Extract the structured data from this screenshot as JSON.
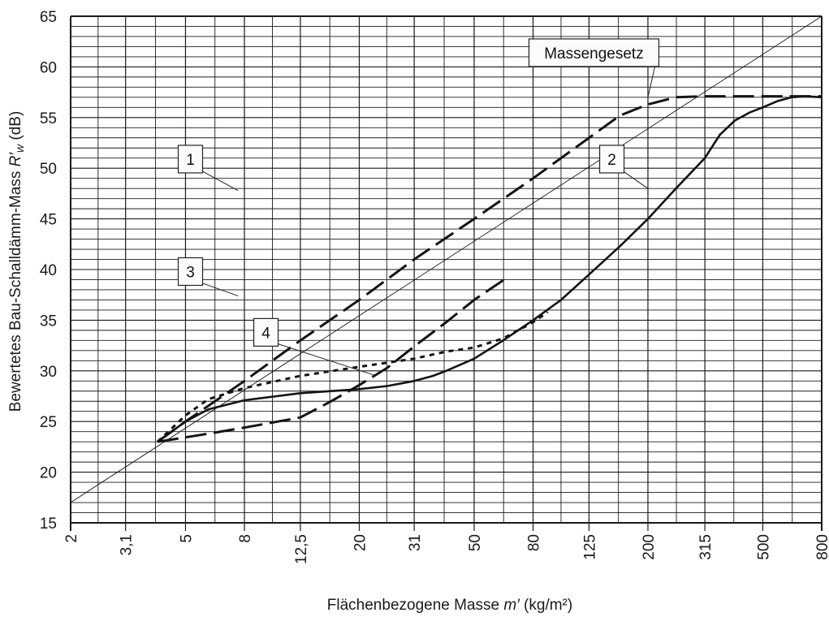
{
  "chart_data": {
    "type": "line",
    "xlabel": "Flächenbezogene Masse m′ (kg/m²)",
    "xlabel_main": "Flächenbezogene Masse ",
    "xlabel_var": "m′",
    "xlabel_unit": " (kg/m²)",
    "ylabel": "Bewertetes Bau-Schalldämm-Mass R′w (dB)",
    "ylabel_main": "Bewertetes Bau-Schalldämm-Mass ",
    "ylabel_var": "R′",
    "ylabel_sub": "w",
    "ylabel_unit": " (dB)",
    "x_scale": "log",
    "x_ticks": [
      2,
      3.1,
      5,
      8,
      12.5,
      20,
      31,
      50,
      80,
      125,
      200,
      315,
      500,
      800
    ],
    "x_tick_labels": [
      "2",
      "3,1",
      "5",
      "8",
      "12,5",
      "20",
      "31",
      "50",
      "80",
      "125",
      "200",
      "315",
      "500",
      "800"
    ],
    "xlim": [
      2,
      800
    ],
    "ylim": [
      15,
      65
    ],
    "y_ticks": [
      15,
      20,
      25,
      30,
      35,
      40,
      45,
      50,
      55,
      60,
      65
    ],
    "y_tick_labels": [
      "15",
      "20",
      "25",
      "30",
      "35",
      "40",
      "45",
      "50",
      "55",
      "60",
      "65"
    ],
    "y_minor_step": 1,
    "grid": true,
    "series": [
      {
        "name": "Massengesetz",
        "style": "thin",
        "points": [
          [
            2,
            17
          ],
          [
            800,
            65
          ]
        ]
      },
      {
        "name": "1",
        "style": "long-dash",
        "points": [
          [
            4,
            23
          ],
          [
            5,
            25
          ],
          [
            8,
            29
          ],
          [
            12.5,
            33
          ],
          [
            20,
            37
          ],
          [
            31,
            41
          ],
          [
            50,
            45
          ],
          [
            80,
            49
          ],
          [
            125,
            53
          ],
          [
            160,
            55.2
          ],
          [
            200,
            56.3
          ],
          [
            250,
            57
          ],
          [
            315,
            57.1
          ],
          [
            500,
            57.1
          ],
          [
            800,
            57.1
          ]
        ]
      },
      {
        "name": "2",
        "style": "solid",
        "points": [
          [
            4,
            23
          ],
          [
            5,
            25
          ],
          [
            6,
            26.2
          ],
          [
            8,
            27.1
          ],
          [
            12.5,
            27.8
          ],
          [
            20,
            28.2
          ],
          [
            25,
            28.5
          ],
          [
            31,
            29
          ],
          [
            36,
            29.5
          ],
          [
            40,
            30
          ],
          [
            50,
            31.2
          ],
          [
            63,
            33
          ],
          [
            80,
            35
          ],
          [
            100,
            37
          ],
          [
            125,
            39.5
          ],
          [
            160,
            42.3
          ],
          [
            200,
            45
          ],
          [
            250,
            48
          ],
          [
            315,
            51
          ],
          [
            355,
            53.3
          ],
          [
            400,
            54.7
          ],
          [
            450,
            55.5
          ],
          [
            500,
            56
          ],
          [
            560,
            56.6
          ],
          [
            630,
            57
          ],
          [
            700,
            57.1
          ],
          [
            800,
            57
          ]
        ]
      },
      {
        "name": "3",
        "style": "long-dash",
        "points": [
          [
            4,
            23
          ],
          [
            6,
            23.8
          ],
          [
            8,
            24.4
          ],
          [
            12.5,
            25.4
          ],
          [
            16,
            27
          ],
          [
            20,
            28.6
          ],
          [
            25,
            30.3
          ],
          [
            31,
            32.4
          ],
          [
            40,
            34.8
          ],
          [
            50,
            37
          ],
          [
            65,
            39.2
          ]
        ]
      },
      {
        "name": "4",
        "style": "dotted",
        "points": [
          [
            4,
            23
          ],
          [
            5,
            25.6
          ],
          [
            6,
            27.2
          ],
          [
            8,
            28.3
          ],
          [
            12.5,
            29.5
          ],
          [
            20,
            30.4
          ],
          [
            31,
            31.2
          ],
          [
            40,
            31.9
          ],
          [
            50,
            32.3
          ],
          [
            63,
            33.2
          ],
          [
            80,
            34.8
          ],
          [
            90,
            35.8
          ]
        ]
      }
    ],
    "annotations": [
      {
        "text": "Massengesetz",
        "x": 130,
        "y": 61.4,
        "points_to": [
          200,
          57
        ]
      },
      {
        "text": "1",
        "x": 5.2,
        "y": 50.9,
        "points_to": [
          7.6,
          47.8
        ]
      },
      {
        "text": "2",
        "x": 150,
        "y": 50.9,
        "points_to": [
          200,
          48
        ]
      },
      {
        "text": "3",
        "x": 5.2,
        "y": 39.8,
        "points_to": [
          7.6,
          37.4
        ]
      },
      {
        "text": "4",
        "x": 9.5,
        "y": 33.8,
        "points_to": [
          22.4,
          29.6
        ]
      }
    ]
  }
}
